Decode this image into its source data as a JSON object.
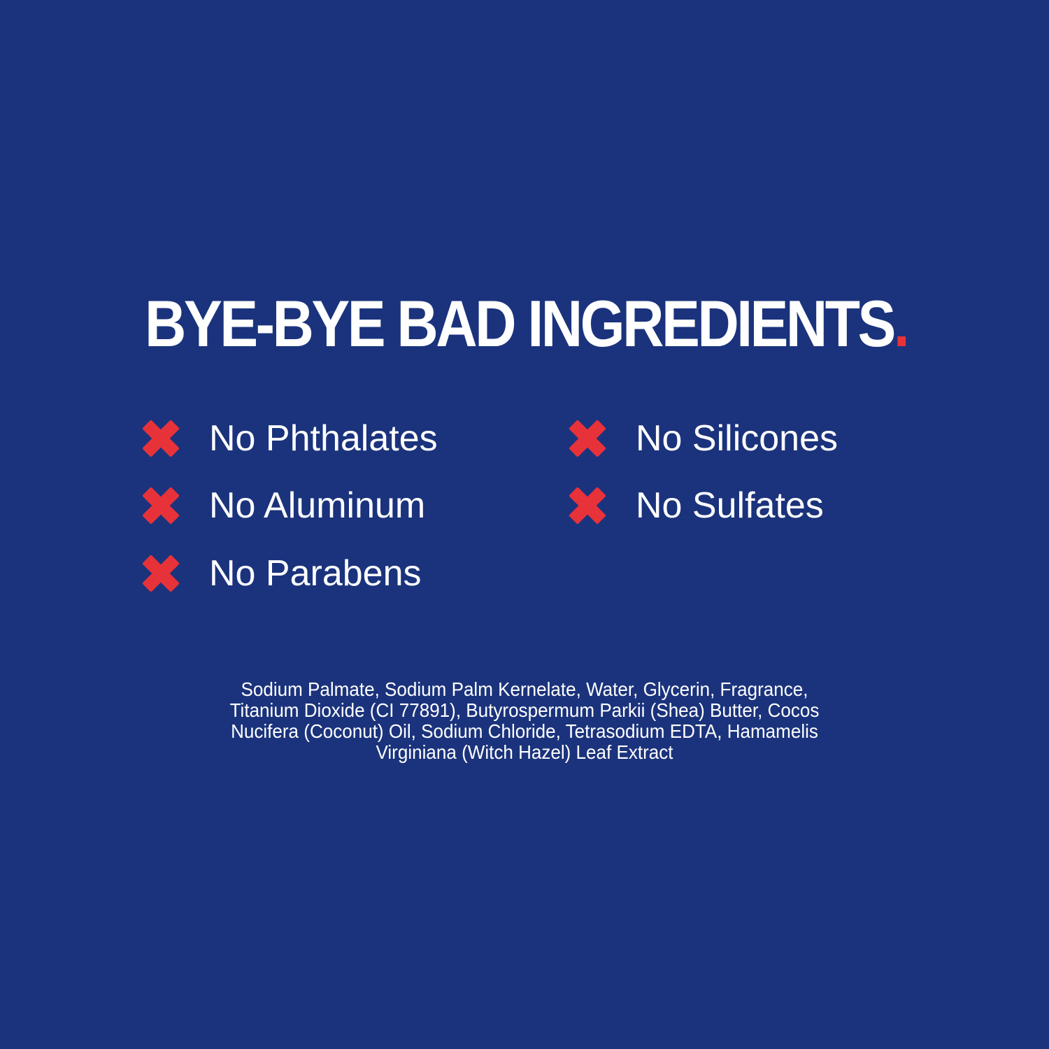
{
  "headline": {
    "text": "BYE-BYE BAD INGREDIENTS",
    "punctuation": "."
  },
  "colors": {
    "background": "#1b337c",
    "accent": "#e8323a",
    "text": "#ffffff"
  },
  "free_from": [
    {
      "label": "No Phthalates",
      "icon": "x-mark-icon"
    },
    {
      "label": "No Aluminum",
      "icon": "x-mark-icon"
    },
    {
      "label": "No Parabens",
      "icon": "x-mark-icon"
    },
    {
      "label": "No Silicones",
      "icon": "x-mark-icon"
    },
    {
      "label": "No Sulfates",
      "icon": "x-mark-icon"
    }
  ],
  "ingredients_lines": [
    "Sodium Palmate, Sodium Palm Kernelate, Water, Glycerin, Fragrance,",
    "Titanium Dioxide (CI 77891), Butyrospermum Parkii (Shea) Butter, Cocos",
    "Nucifera (Coconut) Oil, Sodium Chloride, Tetrasodium EDTA, Hamamelis",
    "Virginiana (Witch Hazel) Leaf Extract"
  ]
}
